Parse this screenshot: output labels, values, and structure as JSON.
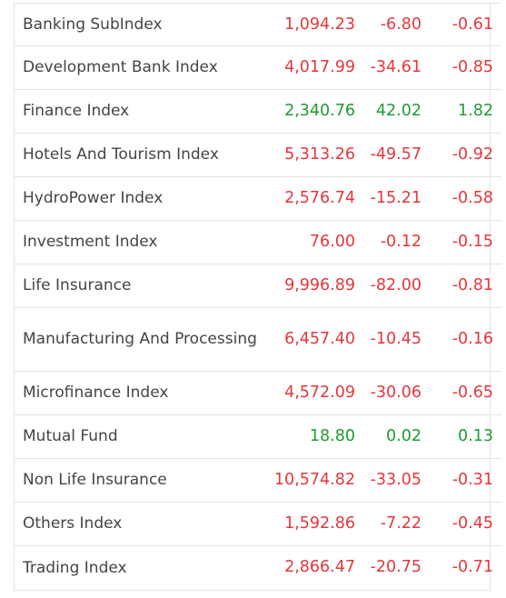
{
  "colors": {
    "negative": "#e5363b",
    "positive": "#1e9b32",
    "text": "#444444",
    "border": "#e3e3e3"
  },
  "indices": [
    {
      "name": "Banking SubIndex",
      "value": "1,094.23",
      "change": "-6.80",
      "percent": "-0.61",
      "direction": "down"
    },
    {
      "name": "Development Bank Index",
      "value": "4,017.99",
      "change": "-34.61",
      "percent": "-0.85",
      "direction": "down"
    },
    {
      "name": "Finance Index",
      "value": "2,340.76",
      "change": "42.02",
      "percent": "1.82",
      "direction": "up"
    },
    {
      "name": "Hotels And Tourism Index",
      "value": "5,313.26",
      "change": "-49.57",
      "percent": "-0.92",
      "direction": "down"
    },
    {
      "name": "HydroPower Index",
      "value": "2,576.74",
      "change": "-15.21",
      "percent": "-0.58",
      "direction": "down"
    },
    {
      "name": "Investment Index",
      "value": "76.00",
      "change": "-0.12",
      "percent": "-0.15",
      "direction": "down"
    },
    {
      "name": "Life Insurance",
      "value": "9,996.89",
      "change": "-82.00",
      "percent": "-0.81",
      "direction": "down"
    },
    {
      "name": "Manufacturing And Processing",
      "value": "6,457.40",
      "change": "-10.45",
      "percent": "-0.16",
      "direction": "down"
    },
    {
      "name": "Microfinance Index",
      "value": "4,572.09",
      "change": "-30.06",
      "percent": "-0.65",
      "direction": "down"
    },
    {
      "name": "Mutual Fund",
      "value": "18.80",
      "change": "0.02",
      "percent": "0.13",
      "direction": "up"
    },
    {
      "name": "Non Life Insurance",
      "value": "10,574.82",
      "change": "-33.05",
      "percent": "-0.31",
      "direction": "down"
    },
    {
      "name": "Others Index",
      "value": "1,592.86",
      "change": "-7.22",
      "percent": "-0.45",
      "direction": "down"
    },
    {
      "name": "Trading Index",
      "value": "2,866.47",
      "change": "-20.75",
      "percent": "-0.71",
      "direction": "down"
    }
  ]
}
